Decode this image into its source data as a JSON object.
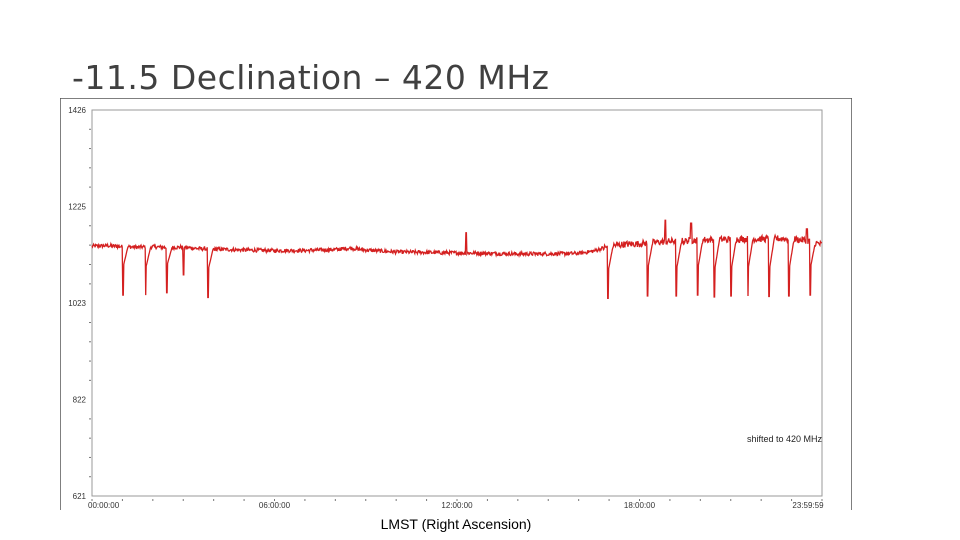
{
  "slide": {
    "title": "-11.5 Declination – 420 MHz",
    "x_caption": "LMST (Right Ascension)"
  },
  "colors": {
    "series": "#d42020",
    "frame": "#555555",
    "plot_border": "#9a9a9a",
    "background": "#ffffff"
  },
  "chart_data": {
    "type": "line",
    "title": "",
    "xlabel": "LMST (Right Ascension)",
    "ylabel": "",
    "x_unit": "hours LMST",
    "xlim": [
      0,
      24
    ],
    "ylim": [
      621,
      1426
    ],
    "y_ticks": [
      1426,
      1225,
      1023,
      822,
      621
    ],
    "y_tick_labels": [
      "1426",
      "1225",
      "1023",
      "822",
      "621"
    ],
    "x_ticks": [
      0,
      6,
      12,
      18,
      24
    ],
    "x_tick_labels": [
      "00:00:00",
      "06:00:00",
      "12:00:00",
      "18:00:00",
      "23:59:59"
    ],
    "grid": false,
    "annotation": "shifted to 420 MHz",
    "series": [
      {
        "x": [
          0.0,
          0.5,
          1.0,
          1.5,
          2.0,
          2.5,
          3.0,
          3.5,
          4.0,
          5.0,
          6.0,
          7.0,
          8.0,
          8.5,
          9.0,
          10.0,
          11.0,
          12.0,
          13.0,
          14.0,
          15.0,
          16.0,
          16.5,
          17.0,
          17.5,
          18.0,
          18.5,
          19.0,
          19.5,
          20.0,
          20.5,
          21.0,
          21.5,
          22.0,
          22.5,
          23.0,
          23.5,
          24.0
        ],
        "values": [
          1142,
          1143,
          1141,
          1140,
          1141,
          1139,
          1140,
          1137,
          1136,
          1134,
          1133,
          1133,
          1135,
          1138,
          1134,
          1130,
          1129,
          1128,
          1127,
          1126,
          1126,
          1127,
          1132,
          1142,
          1146,
          1147,
          1150,
          1152,
          1153,
          1155,
          1156,
          1156,
          1157,
          1157,
          1158,
          1157,
          1154,
          1145
        ]
      }
    ],
    "dips": [
      {
        "x": 1.0,
        "depth": 1040
      },
      {
        "x": 1.75,
        "depth": 1040
      },
      {
        "x": 2.45,
        "depth": 1045
      },
      {
        "x": 3.0,
        "depth": 1082
      },
      {
        "x": 3.8,
        "depth": 1035
      },
      {
        "x": 16.95,
        "depth": 1033
      },
      {
        "x": 18.25,
        "depth": 1038
      },
      {
        "x": 19.2,
        "depth": 1038
      },
      {
        "x": 19.9,
        "depth": 1040
      },
      {
        "x": 20.45,
        "depth": 1036
      },
      {
        "x": 21.0,
        "depth": 1038
      },
      {
        "x": 21.55,
        "depth": 1038
      },
      {
        "x": 22.25,
        "depth": 1037
      },
      {
        "x": 22.9,
        "depth": 1038
      },
      {
        "x": 23.6,
        "depth": 1040
      }
    ],
    "spikes": [
      {
        "x": 12.3,
        "peak": 1170
      },
      {
        "x": 18.85,
        "peak": 1196
      },
      {
        "x": 19.7,
        "peak": 1190
      },
      {
        "x": 23.5,
        "peak": 1178
      }
    ]
  }
}
